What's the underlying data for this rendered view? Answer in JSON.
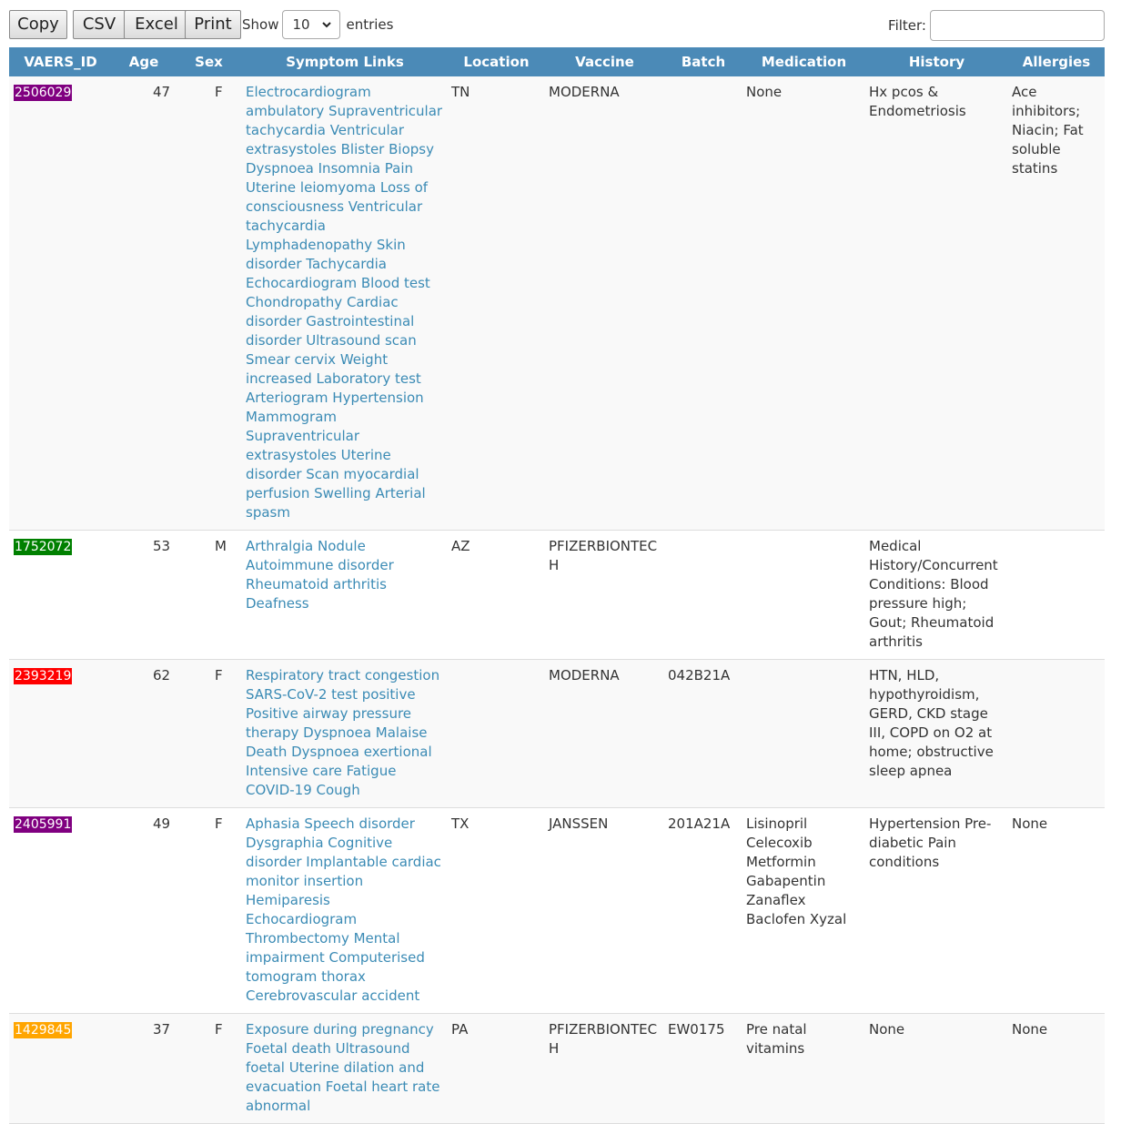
{
  "toolbar": {
    "buttons": [
      "Copy",
      "CSV",
      "Excel",
      "Print"
    ],
    "show_label": "Show",
    "page_size": "10",
    "entries_label": "entries",
    "filter_label": "Filter:",
    "filter_value": ""
  },
  "table": {
    "headers": [
      "VAERS_ID",
      "Age",
      "Sex",
      "Symptom Links",
      "Location",
      "Vaccine",
      "Batch",
      "Medication",
      "History",
      "Allergies"
    ],
    "rows": [
      {
        "id": "2506029",
        "id_color": "#800080",
        "age": "47",
        "sex": "F",
        "symptoms": "Electrocardiogram ambulatory Supraventricular tachycardia Ventricular extrasystoles Blister Biopsy Dyspnoea Insomnia Pain Uterine leiomyoma Loss of consciousness Ventricular tachycardia Lymphadenopathy Skin disorder Tachycardia Echocardiogram Blood test Chondropathy Cardiac disorder Gastrointestinal disorder Ultrasound scan Smear cervix Weight increased Laboratory test Arteriogram Hypertension Mammogram Supraventricular extrasystoles Uterine disorder Scan myocardial perfusion Swelling Arterial spasm",
        "location": "TN",
        "vaccine": "MODERNA",
        "batch": "",
        "medication": "None",
        "history": "Hx pcos & Endometriosis",
        "allergies": "Ace inhibitors; Niacin; Fat soluble statins"
      },
      {
        "id": "1752072",
        "id_color": "#008000",
        "age": "53",
        "sex": "M",
        "symptoms": "Arthralgia Nodule Autoimmune disorder Rheumatoid arthritis Deafness",
        "location": "AZ",
        "vaccine": "PFIZERBIONTECH",
        "batch": "",
        "medication": "",
        "history": "Medical History/Concurrent Conditions: Blood pressure high; Gout; Rheumatoid arthritis",
        "allergies": ""
      },
      {
        "id": "2393219",
        "id_color": "#ff0000",
        "age": "62",
        "sex": "F",
        "symptoms": "Respiratory tract congestion SARS-CoV-2 test positive Positive airway pressure therapy Dyspnoea Malaise Death Dyspnoea exertional Intensive care Fatigue COVID-19 Cough",
        "location": "",
        "vaccine": "MODERNA",
        "batch": "042B21A",
        "medication": "",
        "history": "HTN, HLD, hypothyroidism, GERD, CKD stage III, COPD on O2 at home; obstructive sleep apnea",
        "allergies": ""
      },
      {
        "id": "2405991",
        "id_color": "#800080",
        "age": "49",
        "sex": "F",
        "symptoms": "Aphasia Speech disorder Dysgraphia Cognitive disorder Implantable cardiac monitor insertion Hemiparesis Echocardiogram Thrombectomy Mental impairment Computerised tomogram thorax Cerebrovascular accident",
        "location": "TX",
        "vaccine": "JANSSEN",
        "batch": "201A21A",
        "medication": "Lisinopril Celecoxib Metformin Gabapentin Zanaflex Baclofen Xyzal",
        "history": "Hypertension Pre-diabetic Pain conditions",
        "allergies": "None"
      },
      {
        "id": "1429845",
        "id_color": "#ffa500",
        "age": "37",
        "sex": "F",
        "symptoms": "Exposure during pregnancy Foetal death Ultrasound foetal Uterine dilation and evacuation Foetal heart rate abnormal",
        "location": "PA",
        "vaccine": "PFIZERBIONTECH",
        "batch": "EW0175",
        "medication": "Pre natal vitamins",
        "history": "None",
        "allergies": "None"
      }
    ]
  }
}
